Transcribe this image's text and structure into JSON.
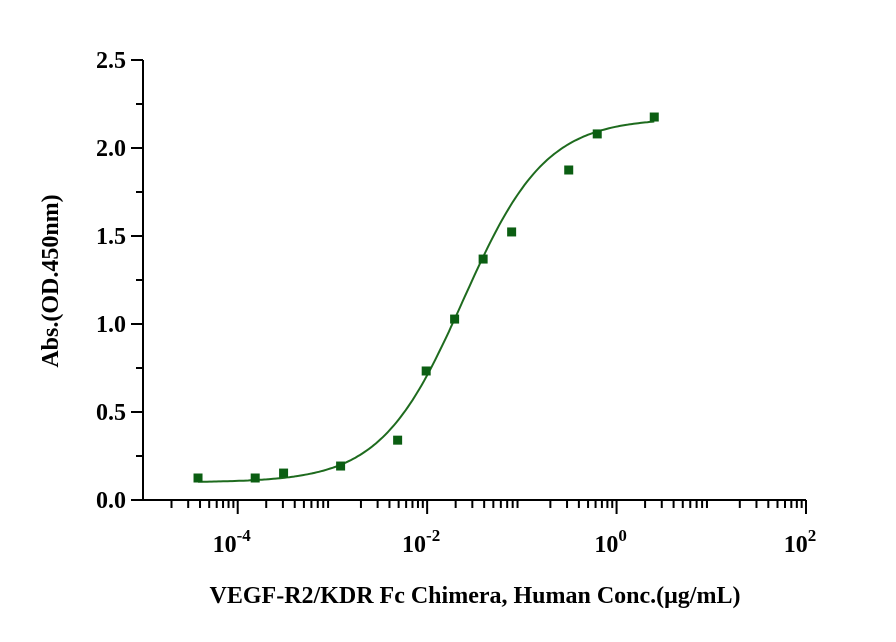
{
  "chart_data": {
    "type": "scatter",
    "xlabel": "VEGF-R2/KDR Fc Chimera, Human Conc.(μg/mL)",
    "ylabel": "Abs.(OD.450nm)",
    "x_scale": "log",
    "xlim": [
      1e-05,
      100
    ],
    "ylim": [
      0,
      2.5
    ],
    "x_ticks": [
      {
        "value": 0.0001,
        "base": "10",
        "exp": "-4"
      },
      {
        "value": 0.01,
        "base": "10",
        "exp": "-2"
      },
      {
        "value": 1,
        "base": "10",
        "exp": "0"
      },
      {
        "value": 100,
        "base": "10",
        "exp": "2"
      }
    ],
    "y_ticks": [
      "0.0",
      "0.5",
      "1.0",
      "1.5",
      "2.0",
      "2.5"
    ],
    "grid": false,
    "marker_color": "#0b5e12",
    "curve_color": "#1e6b1e",
    "points": [
      {
        "x": 3.81e-05,
        "y": 0.125
      },
      {
        "x": 0.000153,
        "y": 0.125
      },
      {
        "x": 0.000305,
        "y": 0.153
      },
      {
        "x": 0.00122,
        "y": 0.193
      },
      {
        "x": 0.00488,
        "y": 0.34
      },
      {
        "x": 0.00977,
        "y": 0.733
      },
      {
        "x": 0.0195,
        "y": 1.028
      },
      {
        "x": 0.039,
        "y": 1.369
      },
      {
        "x": 0.078,
        "y": 1.523
      },
      {
        "x": 0.3125,
        "y": 1.875
      },
      {
        "x": 0.625,
        "y": 2.08
      },
      {
        "x": 2.5,
        "y": 2.176
      }
    ],
    "fit": {
      "model": "4PL",
      "bottom": 0.1,
      "top": 2.17,
      "ec50": 0.024,
      "hill": 1.0
    }
  }
}
